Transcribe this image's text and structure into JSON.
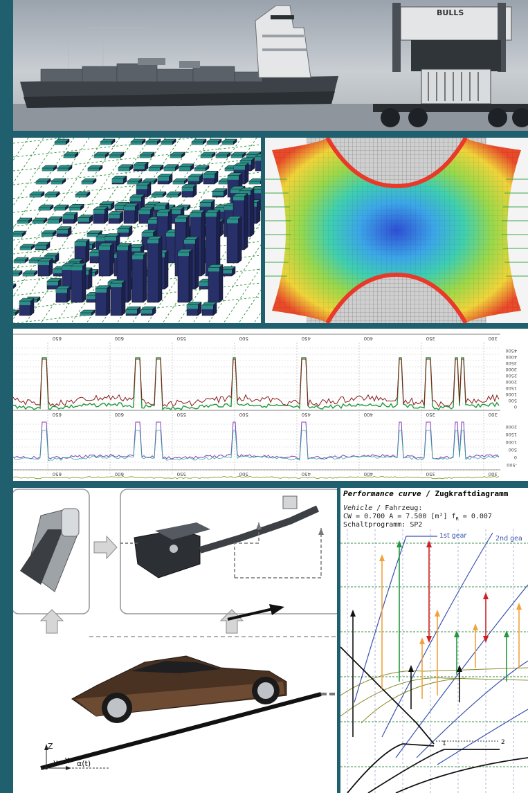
{
  "photo": {
    "truck_sign": "BULLS",
    "ship_text": "",
    "grille_text": ""
  },
  "signals": {
    "top_ticks": [
      "650",
      "600",
      "550",
      "500",
      "450",
      "400",
      "350",
      "300"
    ],
    "mid_ticks": [
      "650",
      "600",
      "550",
      "500",
      "450",
      "400",
      "350",
      "300"
    ],
    "bottom_ticks": [
      "650",
      "600",
      "550",
      "500",
      "450",
      "400",
      "350",
      "300"
    ],
    "right_axis_1": [
      "4500",
      "4000",
      "3500",
      "3000",
      "2500",
      "2000",
      "1500",
      "1000",
      "500",
      "0"
    ],
    "right_axis_2": [
      "2000",
      "1500",
      "1000",
      "500",
      "0",
      "-500"
    ]
  },
  "driver": {
    "axis_z": "Z",
    "axis_y": "y",
    "axis_x": "X",
    "alpha_label": "α(t)"
  },
  "performance": {
    "title_italic": "Performance curve",
    "title_rest": " / Zugkraftdiagramm",
    "vehicle_italic": "Vehicle",
    "vehicle_rest": " / Fahrzeug:",
    "params": "CW = 0.700  A = 7.500 [m²]  f",
    "params_sub": "R",
    "params_tail": " = 0.007",
    "program": "Schaltprogramm: SP2",
    "gear1": "1st gear",
    "gear2": "2nd gea",
    "mark1": "1",
    "mark2": "2"
  },
  "colors": {
    "frame": "#1f5f6e",
    "teal_block": "#2a8f88",
    "navy_block": "#28306a",
    "gear_line": "#3a53b0",
    "red_arrow": "#d21f1f",
    "green_arrow": "#1f9a3a",
    "orange_arrow": "#f2a23a"
  }
}
